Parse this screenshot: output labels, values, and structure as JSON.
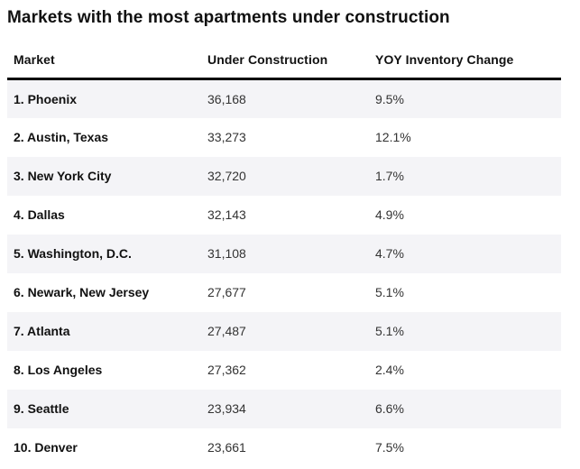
{
  "title": "Markets with the most apartments under construction",
  "table": {
    "columns": [
      "Market",
      "Under Construction",
      "YOY Inventory Change"
    ],
    "rows": [
      {
        "market": "1. Phoenix",
        "under_construction": "36,168",
        "yoy_change": "9.5%"
      },
      {
        "market": "2. Austin, Texas",
        "under_construction": "33,273",
        "yoy_change": "12.1%"
      },
      {
        "market": "3. New York City",
        "under_construction": "32,720",
        "yoy_change": "1.7%"
      },
      {
        "market": "4. Dallas",
        "under_construction": "32,143",
        "yoy_change": "4.9%"
      },
      {
        "market": "5. Washington, D.C.",
        "under_construction": "31,108",
        "yoy_change": "4.7%"
      },
      {
        "market": "6. Newark, New Jersey",
        "under_construction": "27,677",
        "yoy_change": "5.1%"
      },
      {
        "market": "7. Atlanta",
        "under_construction": "27,487",
        "yoy_change": "5.1%"
      },
      {
        "market": "8. Los Angeles",
        "under_construction": "27,362",
        "yoy_change": "2.4%"
      },
      {
        "market": "9. Seattle",
        "under_construction": "23,934",
        "yoy_change": "6.6%"
      },
      {
        "market": "10. Denver",
        "under_construction": "23,661",
        "yoy_change": "7.5%"
      }
    ]
  },
  "colors": {
    "row_stripe": "#f4f4f7",
    "header_rule": "#000000",
    "text_primary": "#111111",
    "text_secondary": "#333333",
    "background": "#ffffff"
  },
  "chart_data": {
    "type": "table",
    "title": "Markets with the most apartments under construction",
    "columns": [
      "Market",
      "Under Construction",
      "YOY Inventory Change"
    ],
    "rows": [
      [
        "Phoenix",
        36168,
        9.5
      ],
      [
        "Austin, Texas",
        33273,
        12.1
      ],
      [
        "New York City",
        32720,
        1.7
      ],
      [
        "Dallas",
        32143,
        4.9
      ],
      [
        "Washington, D.C.",
        31108,
        4.7
      ],
      [
        "Newark, New Jersey",
        27677,
        5.1
      ],
      [
        "Atlanta",
        27487,
        5.1
      ],
      [
        "Los Angeles",
        27362,
        2.4
      ],
      [
        "Seattle",
        23934,
        6.6
      ],
      [
        "Denver",
        23661,
        7.5
      ]
    ],
    "units": {
      "Under Construction": "apartments",
      "YOY Inventory Change": "percent"
    },
    "ranked": true,
    "layout": {
      "striped_rows": true,
      "header_rule": "3px solid black"
    }
  }
}
